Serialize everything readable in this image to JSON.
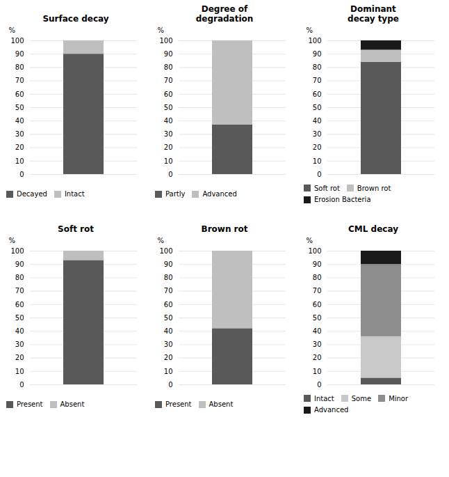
{
  "chart_data": [
    {
      "type": "bar",
      "stacked": true,
      "title": "Surface decay",
      "ylabel": "%",
      "categories": [
        null
      ],
      "tick_labels": "y",
      "series": [
        {
          "name": "Decayed",
          "color": "#595959",
          "values": [
            90
          ]
        },
        {
          "name": "Intact",
          "color": "#bfbfbf",
          "values": [
            10
          ]
        }
      ],
      "ylim": [
        0,
        100
      ],
      "yticks": [
        0,
        10,
        20,
        30,
        40,
        50,
        60,
        70,
        80,
        90,
        100
      ],
      "grid": true,
      "legend": "bottom"
    },
    {
      "type": "bar",
      "stacked": true,
      "title": "Degree of\ndegradation",
      "ylabel": "%",
      "categories": [
        null
      ],
      "tick_labels": "y",
      "series": [
        {
          "name": "Partly",
          "color": "#595959",
          "values": [
            37
          ]
        },
        {
          "name": "Advanced",
          "color": "#bfbfbf",
          "values": [
            63
          ]
        }
      ],
      "ylim": [
        0,
        100
      ],
      "yticks": [
        0,
        10,
        20,
        30,
        40,
        50,
        60,
        70,
        80,
        90,
        100
      ],
      "grid": true,
      "legend": "bottom"
    },
    {
      "type": "bar",
      "stacked": true,
      "title": "Dominant\ndecay type",
      "ylabel": "%",
      "categories": [
        null
      ],
      "tick_labels": "y",
      "series": [
        {
          "name": "Soft rot",
          "color": "#595959",
          "values": [
            84
          ]
        },
        {
          "name": "Brown rot",
          "color": "#bfbfbf",
          "values": [
            9
          ]
        },
        {
          "name": "Erosion Bacteria",
          "color": "#1a1a1a",
          "values": [
            7
          ]
        }
      ],
      "ylim": [
        0,
        100
      ],
      "yticks": [
        0,
        10,
        20,
        30,
        40,
        50,
        60,
        70,
        80,
        90,
        100
      ],
      "grid": true,
      "legend": "bottom"
    },
    {
      "type": "bar",
      "stacked": true,
      "title": "Soft rot",
      "ylabel": "%",
      "categories": [
        null
      ],
      "tick_labels": "y",
      "series": [
        {
          "name": "Present",
          "color": "#595959",
          "values": [
            93
          ]
        },
        {
          "name": "Absent",
          "color": "#bfbfbf",
          "values": [
            7
          ]
        }
      ],
      "ylim": [
        0,
        100
      ],
      "yticks": [
        0,
        10,
        20,
        30,
        40,
        50,
        60,
        70,
        80,
        90,
        100
      ],
      "grid": true,
      "legend": "bottom"
    },
    {
      "type": "bar",
      "stacked": true,
      "title": "Brown rot",
      "ylabel": "%",
      "categories": [
        null
      ],
      "tick_labels": "y",
      "series": [
        {
          "name": "Present",
          "color": "#595959",
          "values": [
            42
          ]
        },
        {
          "name": "Absent",
          "color": "#bfbfbf",
          "values": [
            58
          ]
        }
      ],
      "ylim": [
        0,
        100
      ],
      "yticks": [
        0,
        10,
        20,
        30,
        40,
        50,
        60,
        70,
        80,
        90,
        100
      ],
      "grid": true,
      "legend": "bottom"
    },
    {
      "type": "bar",
      "stacked": true,
      "title": "CML decay",
      "ylabel": "%",
      "categories": [
        null
      ],
      "tick_labels": "y",
      "series": [
        {
          "name": "Intact",
          "color": "#595959",
          "values": [
            5
          ]
        },
        {
          "name": "Some",
          "color": "#c8c8c8",
          "values": [
            31
          ]
        },
        {
          "name": "Minor",
          "color": "#8c8c8c",
          "values": [
            54
          ]
        },
        {
          "name": "Advanced",
          "color": "#1a1a1a",
          "values": [
            10
          ]
        }
      ],
      "ylim": [
        0,
        100
      ],
      "yticks": [
        0,
        10,
        20,
        30,
        40,
        50,
        60,
        70,
        80,
        90,
        100
      ],
      "grid": true,
      "legend": "bottom"
    }
  ]
}
